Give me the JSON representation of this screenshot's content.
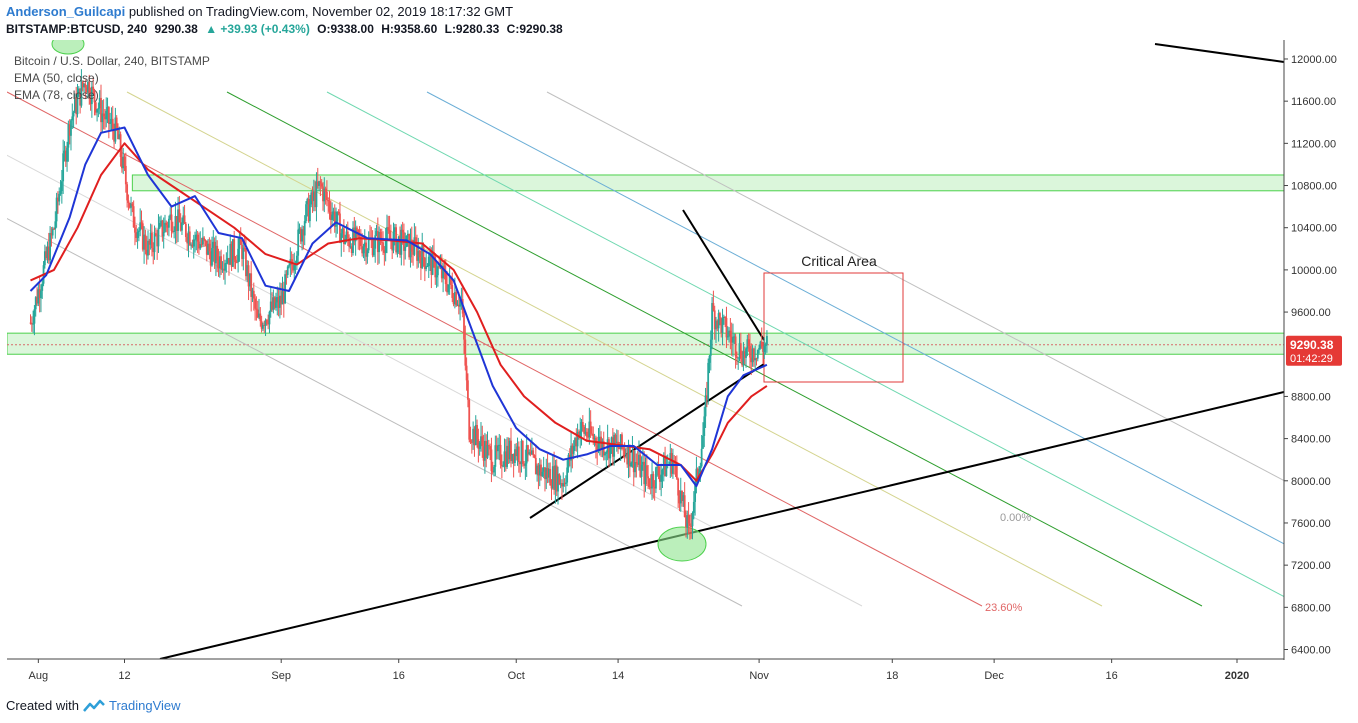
{
  "header": {
    "author": "Anderson_Guilcapi",
    "published": "published on TradingView.com, November 02, 2019 18:17:32 GMT",
    "symbol": "BITSTAMP:BTCUSD, 240",
    "last": "9290.38",
    "change": "▲ +39.93 (+0.43%)",
    "open": "O:9338.00",
    "high": "H:9358.60",
    "low": "L:9280.33",
    "close": "C:9290.38"
  },
  "legend": {
    "title": "Bitcoin / U.S. Dollar, 240, BITSTAMP",
    "ema1": "EMA (50, close)",
    "ema2": "EMA (78, close)"
  },
  "annotations": {
    "critical_area": "Critical Area",
    "fib_0": "0.00%",
    "fib_236": "23.60%"
  },
  "price_badge": {
    "price": "9290.38",
    "countdown": "01:42:29"
  },
  "footer": {
    "created_with": "Created with",
    "brand": "TradingView"
  },
  "colors": {
    "ema50": "#1f35d6",
    "ema78": "#e01f1f",
    "up": "#26a69a",
    "down": "#ef5350",
    "zone": "#7ee07e"
  },
  "chart_data": {
    "type": "candlestick",
    "y_ticks": [
      12000,
      11600,
      11200,
      10800,
      10400,
      10000,
      9600,
      8800,
      8400,
      8000,
      7600,
      7200,
      6800,
      6400
    ],
    "y_tick_labels": [
      "12000.00",
      "11600.00",
      "11200.00",
      "10800.00",
      "10400.00",
      "10000.00",
      "9600.00",
      "8800.00",
      "8400.00",
      "8000.00",
      "7600.00",
      "7200.00",
      "6800.00",
      "6400.00"
    ],
    "x_tick_labels": [
      "Aug",
      "12",
      "Sep",
      "16",
      "Oct",
      "14",
      "Nov",
      "18",
      "Dec",
      "16",
      "2020"
    ],
    "ylim": [
      6310,
      12180
    ],
    "price_path": [
      {
        "d": "2019-07-31",
        "p": 9500
      },
      {
        "d": "2019-08-03",
        "p": 10400
      },
      {
        "d": "2019-08-05",
        "p": 11400
      },
      {
        "d": "2019-08-07",
        "p": 11800
      },
      {
        "d": "2019-08-09",
        "p": 11500
      },
      {
        "d": "2019-08-11",
        "p": 11300
      },
      {
        "d": "2019-08-13",
        "p": 10500
      },
      {
        "d": "2019-08-15",
        "p": 10200
      },
      {
        "d": "2019-08-18",
        "p": 10500
      },
      {
        "d": "2019-08-21",
        "p": 10300
      },
      {
        "d": "2019-08-24",
        "p": 10100
      },
      {
        "d": "2019-08-27",
        "p": 10200
      },
      {
        "d": "2019-08-29",
        "p": 9500
      },
      {
        "d": "2019-09-01",
        "p": 9700
      },
      {
        "d": "2019-09-04",
        "p": 10500
      },
      {
        "d": "2019-09-06",
        "p": 10800
      },
      {
        "d": "2019-09-09",
        "p": 10300
      },
      {
        "d": "2019-09-12",
        "p": 10250
      },
      {
        "d": "2019-09-15",
        "p": 10300
      },
      {
        "d": "2019-09-18",
        "p": 10200
      },
      {
        "d": "2019-09-21",
        "p": 10000
      },
      {
        "d": "2019-09-24",
        "p": 9700
      },
      {
        "d": "2019-09-25",
        "p": 8500
      },
      {
        "d": "2019-09-28",
        "p": 8200
      },
      {
        "d": "2019-10-01",
        "p": 8300
      },
      {
        "d": "2019-10-04",
        "p": 8100
      },
      {
        "d": "2019-10-07",
        "p": 8000
      },
      {
        "d": "2019-10-09",
        "p": 8500
      },
      {
        "d": "2019-10-12",
        "p": 8350
      },
      {
        "d": "2019-10-15",
        "p": 8300
      },
      {
        "d": "2019-10-18",
        "p": 8000
      },
      {
        "d": "2019-10-21",
        "p": 8200
      },
      {
        "d": "2019-10-23",
        "p": 7500
      },
      {
        "d": "2019-10-25",
        "p": 8500
      },
      {
        "d": "2019-10-26",
        "p": 9600
      },
      {
        "d": "2019-10-28",
        "p": 9400
      },
      {
        "d": "2019-10-30",
        "p": 9200
      },
      {
        "d": "2019-11-02",
        "p": 9290
      }
    ],
    "ema50": [
      {
        "d": "2019-07-31",
        "p": 9800
      },
      {
        "d": "2019-08-02",
        "p": 9950
      },
      {
        "d": "2019-08-05",
        "p": 10500
      },
      {
        "d": "2019-08-07",
        "p": 11000
      },
      {
        "d": "2019-08-09",
        "p": 11300
      },
      {
        "d": "2019-08-12",
        "p": 11350
      },
      {
        "d": "2019-08-15",
        "p": 10900
      },
      {
        "d": "2019-08-18",
        "p": 10600
      },
      {
        "d": "2019-08-21",
        "p": 10700
      },
      {
        "d": "2019-08-24",
        "p": 10350
      },
      {
        "d": "2019-08-27",
        "p": 10300
      },
      {
        "d": "2019-08-30",
        "p": 9850
      },
      {
        "d": "2019-09-02",
        "p": 9800
      },
      {
        "d": "2019-09-05",
        "p": 10250
      },
      {
        "d": "2019-09-08",
        "p": 10450
      },
      {
        "d": "2019-09-12",
        "p": 10300
      },
      {
        "d": "2019-09-17",
        "p": 10280
      },
      {
        "d": "2019-09-20",
        "p": 10150
      },
      {
        "d": "2019-09-23",
        "p": 9900
      },
      {
        "d": "2019-09-25",
        "p": 9500
      },
      {
        "d": "2019-09-28",
        "p": 8900
      },
      {
        "d": "2019-10-01",
        "p": 8500
      },
      {
        "d": "2019-10-04",
        "p": 8300
      },
      {
        "d": "2019-10-07",
        "p": 8200
      },
      {
        "d": "2019-10-10",
        "p": 8250
      },
      {
        "d": "2019-10-13",
        "p": 8330
      },
      {
        "d": "2019-10-16",
        "p": 8330
      },
      {
        "d": "2019-10-19",
        "p": 8150
      },
      {
        "d": "2019-10-22",
        "p": 8150
      },
      {
        "d": "2019-10-24",
        "p": 7950
      },
      {
        "d": "2019-10-26",
        "p": 8300
      },
      {
        "d": "2019-10-28",
        "p": 8800
      },
      {
        "d": "2019-10-30",
        "p": 9000
      },
      {
        "d": "2019-11-02",
        "p": 9100
      }
    ],
    "ema78": [
      {
        "d": "2019-07-31",
        "p": 9900
      },
      {
        "d": "2019-08-03",
        "p": 10000
      },
      {
        "d": "2019-08-06",
        "p": 10400
      },
      {
        "d": "2019-08-09",
        "p": 10900
      },
      {
        "d": "2019-08-12",
        "p": 11200
      },
      {
        "d": "2019-08-15",
        "p": 10950
      },
      {
        "d": "2019-08-18",
        "p": 10800
      },
      {
        "d": "2019-08-22",
        "p": 10600
      },
      {
        "d": "2019-08-26",
        "p": 10400
      },
      {
        "d": "2019-08-30",
        "p": 10150
      },
      {
        "d": "2019-09-03",
        "p": 10050
      },
      {
        "d": "2019-09-07",
        "p": 10250
      },
      {
        "d": "2019-09-11",
        "p": 10300
      },
      {
        "d": "2019-09-15",
        "p": 10280
      },
      {
        "d": "2019-09-19",
        "p": 10250
      },
      {
        "d": "2019-09-23",
        "p": 10000
      },
      {
        "d": "2019-09-26",
        "p": 9600
      },
      {
        "d": "2019-09-29",
        "p": 9100
      },
      {
        "d": "2019-10-02",
        "p": 8800
      },
      {
        "d": "2019-10-06",
        "p": 8550
      },
      {
        "d": "2019-10-10",
        "p": 8380
      },
      {
        "d": "2019-10-14",
        "p": 8340
      },
      {
        "d": "2019-10-18",
        "p": 8300
      },
      {
        "d": "2019-10-22",
        "p": 8150
      },
      {
        "d": "2019-10-24",
        "p": 8000
      },
      {
        "d": "2019-10-26",
        "p": 8250
      },
      {
        "d": "2019-10-28",
        "p": 8550
      },
      {
        "d": "2019-10-31",
        "p": 8800
      },
      {
        "d": "2019-11-02",
        "p": 8900
      }
    ],
    "zones": [
      {
        "from": 10750,
        "to": 10900
      },
      {
        "from": 9200,
        "to": 9400
      }
    ],
    "fib_levels": [
      "0.00%",
      "23.60%"
    ]
  }
}
